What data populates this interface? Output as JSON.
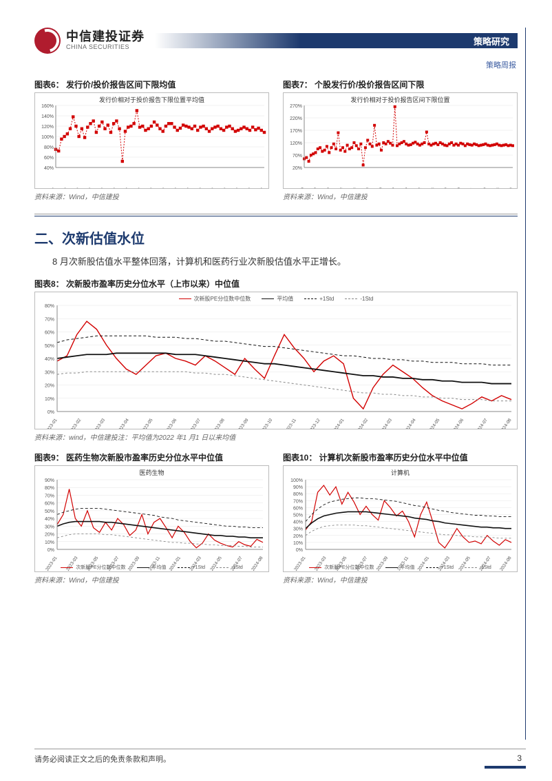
{
  "header": {
    "logo_cn": "中信建投证券",
    "logo_en": "CHINA SECURITIES",
    "category": "策略研究",
    "sub": "策略周报"
  },
  "section": {
    "title": "二、次新估值水位",
    "body": "8 月次新股估值水平整体回落，计算机和医药行业次新股估值水平正增长。"
  },
  "colors": {
    "red": "#d20000",
    "navy": "#1d3a6e",
    "black": "#111111",
    "grid": "#e5e5e5",
    "axis": "#888888"
  },
  "chart6": {
    "title": "图表6：  发行价/投价报告区间下限均值",
    "inner": "发行价相对于投价报告下限位置平均值",
    "source": "资料来源：Wind，中信建投",
    "type": "line-marker",
    "ylim": [
      40,
      160
    ],
    "ytick_step": 20,
    "xlabels": [
      "2021年10月",
      "2021年12月",
      "2022年2月",
      "2022年4月",
      "2022年6月",
      "2022年8月",
      "2022年10月",
      "2022年12月",
      "2023年2月",
      "2023年4月",
      "2023年6月",
      "2023年8月",
      "2023年10月",
      "2023年12月",
      "2024年2月",
      "2024年4月",
      "2024年6月",
      "2024年8月"
    ],
    "values": [
      75,
      72,
      95,
      100,
      105,
      115,
      138,
      120,
      100,
      115,
      98,
      118,
      125,
      130,
      108,
      120,
      128,
      115,
      122,
      108,
      125,
      130,
      115,
      52,
      110,
      118,
      120,
      125,
      150,
      118,
      120,
      112,
      115,
      120,
      128,
      122,
      115,
      110,
      120,
      125,
      125,
      118,
      112,
      116,
      122,
      120,
      118,
      115,
      120,
      112,
      118,
      120,
      115,
      110,
      115,
      118,
      120,
      115,
      112,
      118,
      120,
      115,
      110,
      112,
      115,
      118,
      115,
      112,
      118,
      113,
      116,
      112,
      108
    ],
    "color": "#d20000",
    "marker_size": 2.2,
    "line_style": "dashed"
  },
  "chart7": {
    "title": "图表7：  个股发行价/投价报告区间下限",
    "inner": "发行价相对于投价报告区间下限位置",
    "source": "资料来源：Wind，中信建投",
    "type": "line-marker",
    "ylim": [
      20,
      270
    ],
    "ytick_step": 50,
    "xlabels": [
      "2021/10",
      "2021/12",
      "2022/2",
      "2022/4",
      "2022/6",
      "2022/8",
      "2022/10",
      "2022/12",
      "2023/2",
      "2023/4",
      "2023/6",
      "2023/8",
      "2023/10",
      "2024/1",
      "2024/3",
      "2024/5",
      "2024/8"
    ],
    "values": [
      55,
      60,
      45,
      70,
      75,
      80,
      95,
      100,
      85,
      90,
      105,
      80,
      100,
      115,
      95,
      160,
      90,
      100,
      85,
      110,
      95,
      100,
      120,
      108,
      95,
      115,
      30,
      100,
      130,
      115,
      105,
      190,
      110,
      115,
      90,
      120,
      115,
      125,
      118,
      110,
      265,
      108,
      115,
      120,
      125,
      115,
      110,
      112,
      118,
      122,
      115,
      110,
      115,
      120,
      163,
      115,
      110,
      115,
      118,
      112,
      120,
      115,
      110,
      108,
      115,
      120,
      110,
      115,
      110,
      118,
      115,
      108,
      115,
      112,
      110,
      115,
      112,
      108,
      110,
      112,
      115,
      110,
      108,
      110,
      112,
      115,
      110,
      108,
      110,
      112,
      108,
      110,
      108
    ],
    "color": "#d20000",
    "marker_size": 2.0,
    "line_style": "dashed"
  },
  "chart8": {
    "title": "图表8：  次新股市盈率历史分位水平（上市以来）中位值",
    "source": "资料来源：wind，中信建投注：平均值为2022 年1 月1 日以来均值",
    "type": "multi-line",
    "ylim": [
      0,
      80
    ],
    "ytick_step": 10,
    "xlabels": [
      "2023-01",
      "2023-02",
      "2023-03",
      "2023-04",
      "2023-05",
      "2023-06",
      "2023-07",
      "2023-08",
      "2023-09",
      "2023-10",
      "2023-11",
      "2023-12",
      "2024-01",
      "2024-02",
      "2024-03",
      "2024-04",
      "2024-05",
      "2024-06",
      "2024-07",
      "2024-08"
    ],
    "legend": [
      "次新股PE分位数中位数",
      "平均值",
      "+1Std",
      "-1Std"
    ],
    "series": {
      "main": [
        38,
        42,
        58,
        68,
        62,
        50,
        40,
        32,
        28,
        35,
        42,
        44,
        40,
        38,
        35,
        42,
        38,
        33,
        28,
        40,
        32,
        25,
        42,
        58,
        48,
        40,
        30,
        38,
        42,
        36,
        10,
        2,
        18,
        28,
        35,
        30,
        25,
        18,
        12,
        8,
        5,
        2,
        6,
        11,
        8,
        12,
        9
      ],
      "mean": [
        40,
        41,
        42,
        43,
        43,
        43,
        44,
        44,
        44,
        44,
        44,
        44,
        43,
        43,
        43,
        42,
        41,
        40,
        39,
        38,
        37,
        36,
        36,
        35,
        34,
        33,
        32,
        31,
        30,
        29,
        28,
        27,
        27,
        26,
        26,
        25,
        25,
        24,
        24,
        23,
        23,
        22,
        22,
        22,
        21,
        21,
        21
      ],
      "plus": [
        52,
        54,
        55,
        56,
        57,
        57,
        57,
        57,
        57,
        57,
        56,
        56,
        56,
        55,
        55,
        54,
        53,
        53,
        52,
        51,
        50,
        49,
        49,
        48,
        47,
        46,
        45,
        44,
        43,
        42,
        42,
        41,
        40,
        40,
        39,
        39,
        38,
        38,
        37,
        37,
        37,
        36,
        36,
        36,
        35,
        35,
        35
      ],
      "minus": [
        28,
        29,
        29,
        30,
        30,
        30,
        30,
        30,
        30,
        30,
        30,
        30,
        30,
        30,
        29,
        29,
        28,
        28,
        27,
        26,
        25,
        24,
        23,
        22,
        21,
        20,
        19,
        18,
        17,
        16,
        15,
        14,
        14,
        13,
        13,
        12,
        12,
        11,
        11,
        10,
        10,
        9,
        9,
        9,
        8,
        8,
        8
      ]
    },
    "styles": {
      "main": {
        "color": "#d20000",
        "width": 1.4,
        "dash": "none"
      },
      "mean": {
        "color": "#111111",
        "width": 1.8,
        "dash": "none"
      },
      "plus": {
        "color": "#111111",
        "width": 1,
        "dash": "4,3"
      },
      "minus": {
        "color": "#888888",
        "width": 1,
        "dash": "3,3"
      }
    }
  },
  "chart9": {
    "title": "图表9：  医药生物次新股市盈率历史分位水平中位值",
    "inner": "医药生物",
    "source": "资料来源：Wind，中信建投",
    "type": "multi-line",
    "ylim": [
      0,
      90
    ],
    "ytick_step": 10,
    "xlabels": [
      "2023-01",
      "2023-03",
      "2023-05",
      "2023-07",
      "2023-09",
      "2023-11",
      "2024-01",
      "2024-03",
      "2024-05",
      "2024-07",
      "2024-08"
    ],
    "legend": [
      "次新股PE分位数中位数",
      "平均值",
      "+1Std",
      "-1Std"
    ],
    "series": {
      "main": [
        32,
        45,
        78,
        40,
        30,
        50,
        28,
        22,
        35,
        25,
        40,
        32,
        18,
        25,
        45,
        20,
        35,
        40,
        28,
        15,
        30,
        22,
        10,
        2,
        8,
        20,
        12,
        8,
        5,
        3,
        10,
        6,
        4,
        13,
        9
      ],
      "mean": [
        30,
        33,
        35,
        36,
        36,
        36,
        36,
        36,
        35,
        35,
        34,
        33,
        32,
        31,
        30,
        29,
        28,
        27,
        26,
        25,
        24,
        23,
        22,
        21,
        20,
        19,
        18,
        18,
        17,
        17,
        16,
        16,
        15,
        15,
        15
      ],
      "plus": [
        45,
        48,
        50,
        52,
        53,
        53,
        53,
        53,
        52,
        51,
        50,
        49,
        48,
        47,
        46,
        45,
        44,
        42,
        41,
        40,
        38,
        37,
        36,
        35,
        34,
        33,
        32,
        31,
        30,
        30,
        29,
        29,
        28,
        28,
        28
      ],
      "minus": [
        15,
        17,
        19,
        20,
        20,
        20,
        20,
        20,
        19,
        19,
        18,
        17,
        16,
        15,
        14,
        13,
        12,
        11,
        10,
        9,
        9,
        8,
        8,
        7,
        7,
        6,
        6,
        5,
        5,
        5,
        4,
        4,
        3,
        3,
        3
      ]
    },
    "styles": {
      "main": {
        "color": "#d20000",
        "width": 1.2,
        "dash": "none"
      },
      "mean": {
        "color": "#111111",
        "width": 1.6,
        "dash": "none"
      },
      "plus": {
        "color": "#111111",
        "width": 0.9,
        "dash": "4,3"
      },
      "minus": {
        "color": "#888888",
        "width": 0.9,
        "dash": "3,3"
      }
    }
  },
  "chart10": {
    "title": "图表10：  计算机次新股市盈率历史分位水平中位值",
    "inner": "计算机",
    "source": "资料来源：Wind，中信建投",
    "type": "multi-line",
    "ylim": [
      0,
      100
    ],
    "ytick_step": 10,
    "xlabels": [
      "2023-01",
      "2023-03",
      "2023-05",
      "2023-07",
      "2023-09",
      "2023-11",
      "2024-01",
      "2024-03",
      "2024-05",
      "2024-07",
      "2024-08"
    ],
    "legend": [
      "次新股PE分位数中位数",
      "平均值",
      "+1Std",
      "-1Std"
    ],
    "series": {
      "main": [
        28,
        40,
        82,
        92,
        78,
        90,
        65,
        82,
        68,
        50,
        62,
        50,
        42,
        70,
        60,
        48,
        55,
        40,
        18,
        50,
        68,
        40,
        10,
        2,
        15,
        30,
        18,
        10,
        12,
        8,
        20,
        12,
        6,
        14,
        10
      ],
      "mean": [
        30,
        38,
        44,
        48,
        50,
        52,
        53,
        54,
        54,
        54,
        54,
        53,
        52,
        51,
        50,
        49,
        48,
        47,
        45,
        44,
        43,
        41,
        40,
        38,
        37,
        36,
        35,
        34,
        33,
        32,
        32,
        31,
        31,
        30,
        30
      ],
      "plus": [
        40,
        50,
        58,
        64,
        68,
        70,
        72,
        73,
        74,
        74,
        73,
        73,
        72,
        71,
        70,
        69,
        67,
        65,
        63,
        62,
        60,
        58,
        56,
        55,
        53,
        52,
        51,
        50,
        49,
        49,
        48,
        48,
        47,
        47,
        47
      ],
      "minus": [
        20,
        26,
        30,
        33,
        34,
        35,
        35,
        35,
        35,
        34,
        34,
        33,
        32,
        31,
        30,
        29,
        28,
        27,
        26,
        25,
        24,
        23,
        22,
        21,
        21,
        20,
        19,
        19,
        18,
        18,
        17,
        17,
        16,
        16,
        16
      ]
    },
    "styles": {
      "main": {
        "color": "#d20000",
        "width": 1.2,
        "dash": "none"
      },
      "mean": {
        "color": "#111111",
        "width": 1.6,
        "dash": "none"
      },
      "plus": {
        "color": "#111111",
        "width": 0.9,
        "dash": "4,3"
      },
      "minus": {
        "color": "#888888",
        "width": 0.9,
        "dash": "3,3"
      }
    }
  },
  "footer": {
    "disclaimer": "请务必阅读正文之后的免责条款和声明。",
    "page": "3"
  }
}
